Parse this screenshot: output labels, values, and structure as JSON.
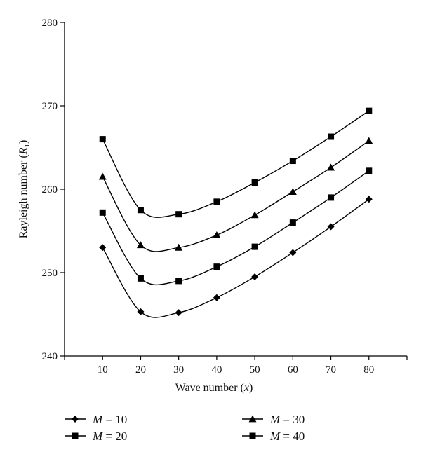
{
  "chart_data": {
    "type": "line",
    "xlabel": {
      "prefix": "Wave number (",
      "var": "x",
      "suffix": ")"
    },
    "ylabel": {
      "prefix": "Rayleigh number (",
      "var": "R",
      "sub": "1",
      "suffix": ")"
    },
    "xlim": [
      0,
      90
    ],
    "ylim": [
      240,
      280
    ],
    "x_ticks": [
      10,
      20,
      30,
      40,
      50,
      60,
      70,
      80
    ],
    "y_ticks": [
      240,
      250,
      260,
      270,
      280
    ],
    "grid": false,
    "legend_position": "bottom",
    "x": [
      10,
      20,
      30,
      40,
      50,
      60,
      70,
      80
    ],
    "series": [
      {
        "name": "M = 10",
        "name_var": "M",
        "name_eq": " = 10",
        "marker": "diamond",
        "values": [
          253.0,
          245.3,
          245.2,
          247.0,
          249.5,
          252.4,
          255.5,
          258.8
        ]
      },
      {
        "name": "M = 20",
        "name_var": "M",
        "name_eq": " = 20",
        "marker": "square",
        "values": [
          257.2,
          249.3,
          249.0,
          250.7,
          253.1,
          256.0,
          259.0,
          262.2
        ]
      },
      {
        "name": "M = 30",
        "name_var": "M",
        "name_eq": " = 30",
        "marker": "triangle",
        "values": [
          261.5,
          253.3,
          253.0,
          254.5,
          256.9,
          259.7,
          262.6,
          265.8
        ]
      },
      {
        "name": "M = 40",
        "name_var": "M",
        "name_eq": " = 40",
        "marker": "square",
        "values": [
          266.0,
          257.5,
          257.0,
          258.5,
          260.8,
          263.4,
          266.3,
          269.4
        ]
      }
    ],
    "colors": {
      "line": "#000000",
      "axis": "#000000"
    }
  }
}
